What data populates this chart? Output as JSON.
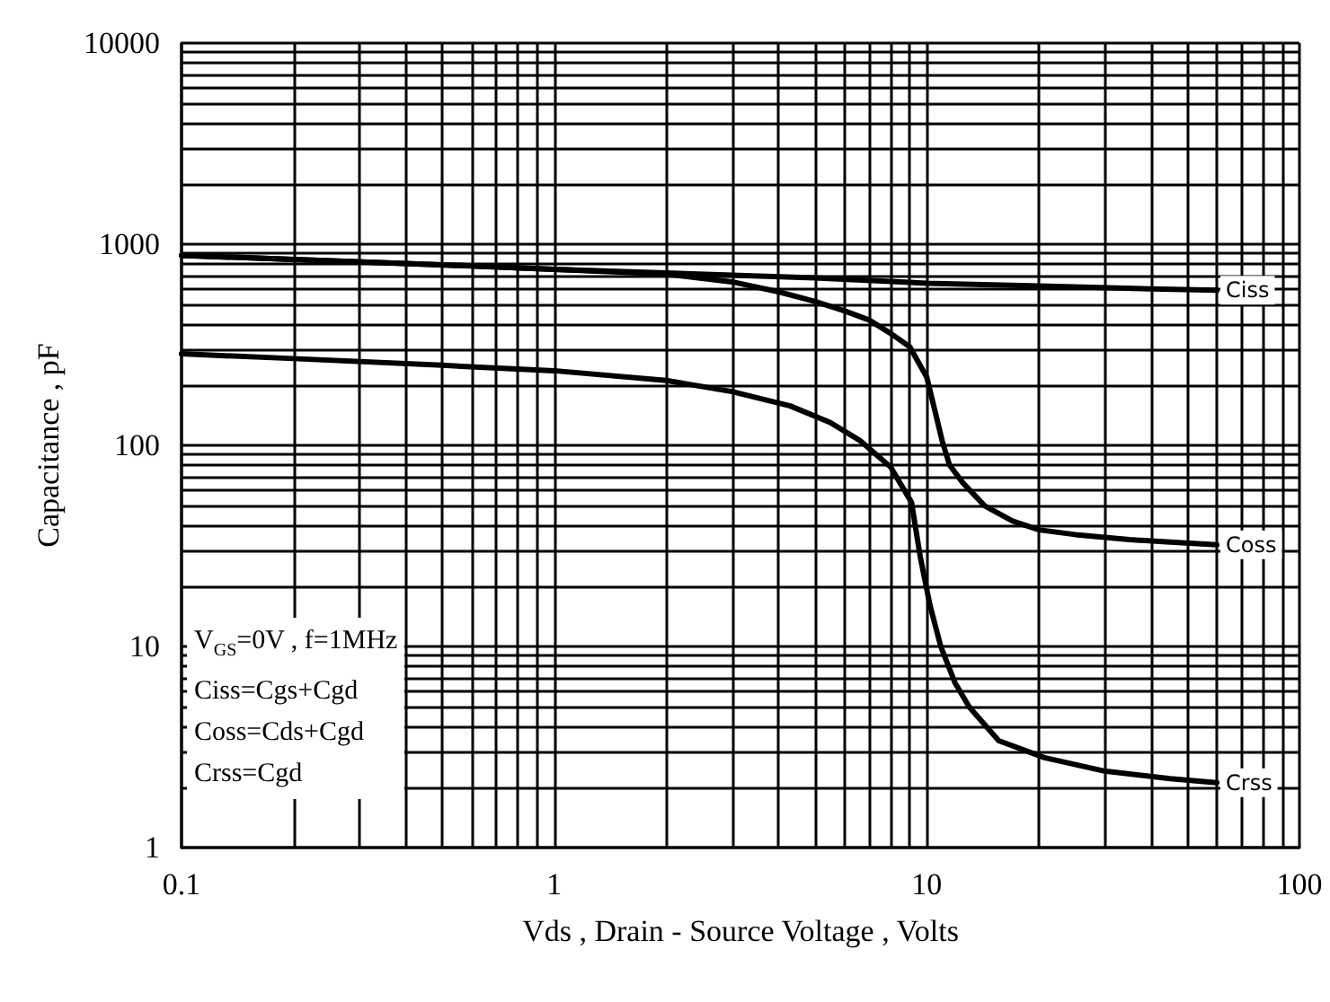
{
  "chart_data": {
    "type": "line",
    "xlabel": "Vds , Drain - Source Voltage , Volts",
    "ylabel": "Capacitance , pF",
    "log": "xy",
    "xlim": [
      0.1,
      100
    ],
    "xticks": [
      0.1,
      1,
      10,
      100
    ],
    "ylim": [
      1,
      10000
    ],
    "yticks": [
      1,
      10,
      100,
      1000,
      10000
    ],
    "grid": true,
    "legend": false,
    "marker": "none",
    "line_style": "solid",
    "annotations": [
      "V$_{GS}$=0V , f=1MHz",
      "Ciss=Cgs+Cgd",
      "Coss=Cds+Cgd",
      "Crss=Cgd"
    ],
    "series": [
      {
        "name": "Ciss",
        "color": "#000000",
        "x": [
          0.1,
          0.2,
          0.5,
          1,
          2,
          5,
          10,
          20,
          40,
          60
        ],
        "values": [
          880,
          840,
          790,
          750,
          720,
          680,
          640,
          620,
          600,
          590
        ]
      },
      {
        "name": "Coss",
        "color": "#000000",
        "x": [
          0.1,
          0.2,
          0.5,
          1,
          2,
          3,
          4,
          5,
          6,
          7,
          8,
          9,
          10,
          10.5,
          11,
          11.5,
          12.5,
          14.3,
          17,
          20,
          25,
          35,
          45,
          60
        ],
        "values": [
          880,
          840,
          790,
          750,
          710,
          650,
          580,
          520,
          467,
          420,
          360,
          309,
          218,
          150,
          105,
          80,
          65,
          50,
          42,
          38,
          36,
          34,
          33,
          32
        ]
      },
      {
        "name": "Crss",
        "color": "#000000",
        "x": [
          0.1,
          0.2,
          0.5,
          1,
          2,
          3,
          4.3,
          5.5,
          6.6,
          8,
          9.1,
          9.6,
          10.2,
          10.9,
          11.9,
          13,
          15.6,
          20.7,
          30,
          45,
          60
        ],
        "values": [
          285,
          270,
          250,
          235,
          210,
          185,
          157,
          130,
          106,
          78,
          52,
          28,
          16,
          10,
          6.6,
          5,
          3.4,
          2.8,
          2.4,
          2.2,
          2.1
        ]
      }
    ]
  }
}
